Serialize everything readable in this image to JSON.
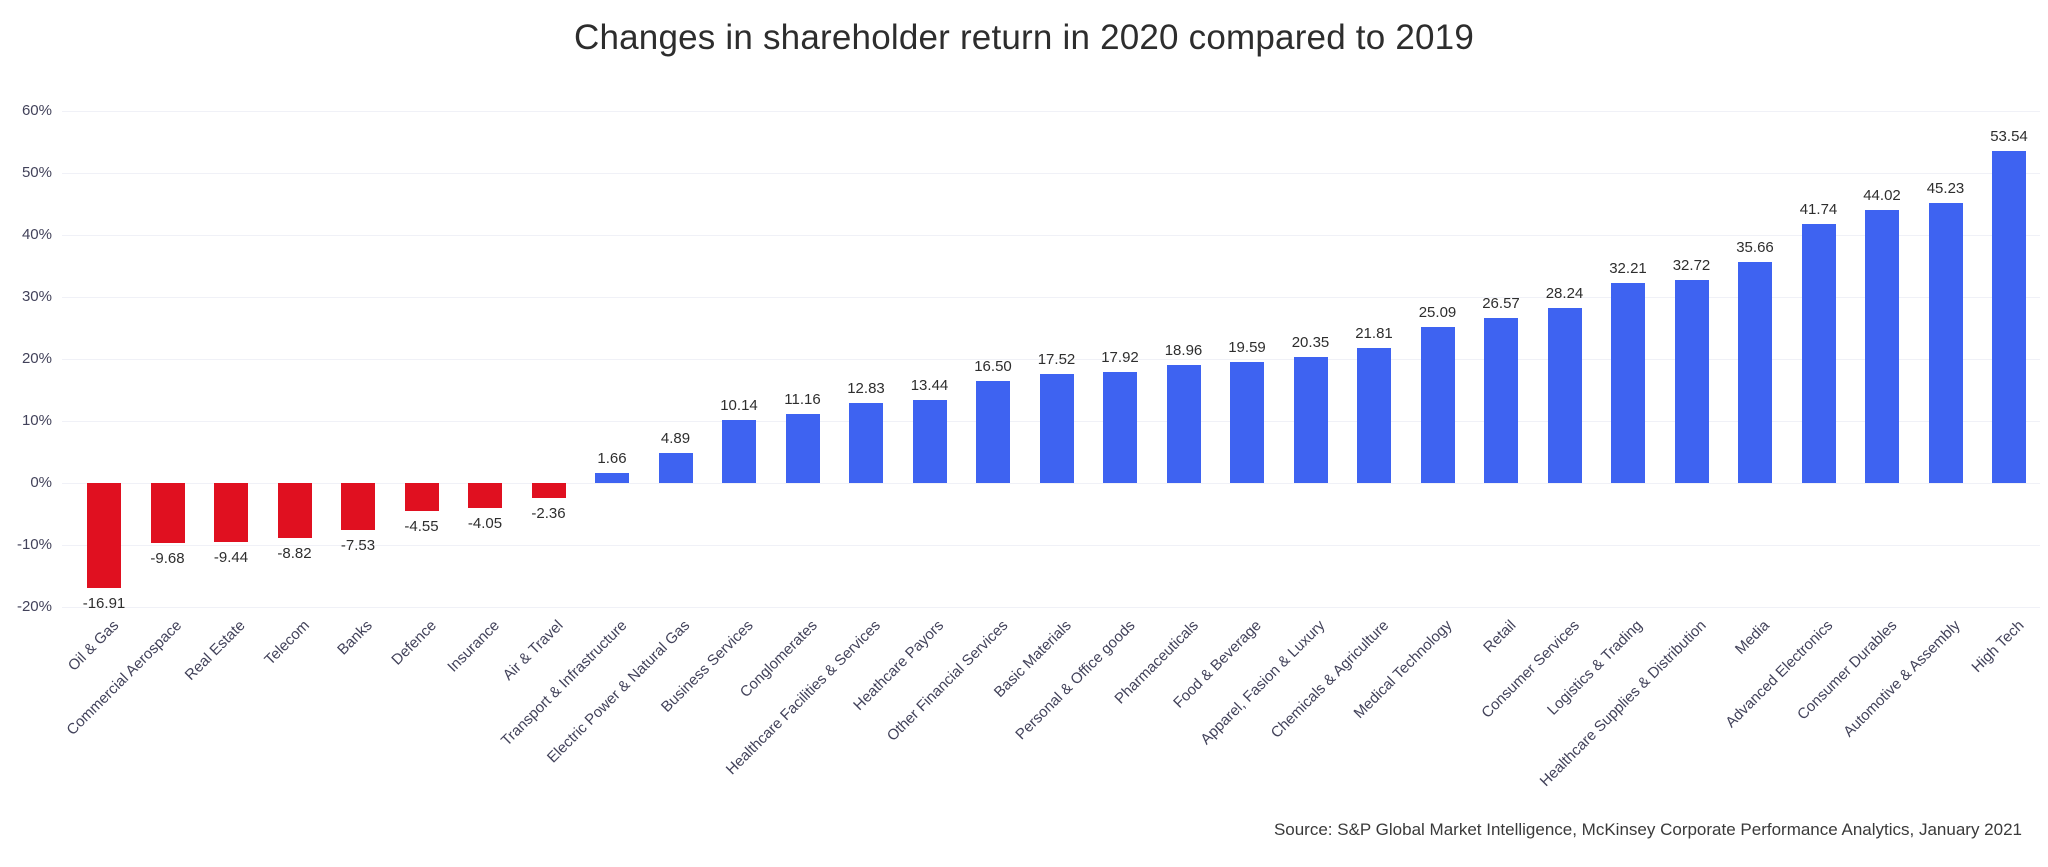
{
  "title": "Changes in shareholder return in 2020 compared to 2019",
  "source": "Source: S&P Global Market Intelligence, McKinsey Corporate Performance Analytics, January 2021",
  "colors": {
    "positive": "#3e63f1",
    "negative": "#e01020",
    "grid": "#f0f1f7",
    "axis_label": "#42425a",
    "value_label": "#2e2e2e",
    "title": "#2d2d2d"
  },
  "chart_data": {
    "type": "bar",
    "title": "Changes in shareholder return in 2020 compared to 2019",
    "xlabel": "",
    "ylabel": "",
    "ylim": [
      -20,
      60
    ],
    "grid": true,
    "legend": "none",
    "y_ticks": [
      "60%",
      "50%",
      "40%",
      "30%",
      "20%",
      "10%",
      "0%",
      "-10%",
      "-20%"
    ],
    "categories": [
      "Oil & Gas",
      "Commercial Aerospace",
      "Real Estate",
      "Telecom",
      "Banks",
      "Defence",
      "Insurance",
      "Air & Travel",
      "Transport & Infrastructure",
      "Electric Power & Natural Gas",
      "Business Services",
      "Conglomerates",
      "Healthcare Facilities & Services",
      "Heathcare Payors",
      "Other Financial Services",
      "Basic Materials",
      "Personal & Office goods",
      "Pharmaceuticals",
      "Food & Beverage",
      "Apparel, Fasion & Luxury",
      "Chemicals & Agriculture",
      "Medical Technology",
      "Retail",
      "Consumer Services",
      "Logistics & Trading",
      "Healthcare Supplies & Distribution",
      "Media",
      "Advanced Electronics",
      "Consumer Durables",
      "Automotive & Assembly",
      "High Tech"
    ],
    "values": [
      -16.91,
      -9.68,
      -9.44,
      -8.82,
      -7.53,
      -4.55,
      -4.05,
      -2.36,
      1.66,
      4.89,
      10.14,
      11.16,
      12.83,
      13.44,
      16.5,
      17.52,
      17.92,
      18.96,
      19.59,
      20.35,
      21.81,
      25.09,
      26.57,
      28.24,
      32.21,
      32.72,
      35.66,
      41.74,
      44.02,
      45.23,
      53.54
    ],
    "value_labels": [
      "-16.91",
      "-9.68",
      "-9.44",
      "-8.82",
      "-7.53",
      "-4.55",
      "-4.05",
      "-2.36",
      "1.66",
      "4.89",
      "10.14",
      "11.16",
      "12.83",
      "13.44",
      "16.50",
      "17.52",
      "17.92",
      "18.96",
      "19.59",
      "20.35",
      "21.81",
      "25.09",
      "26.57",
      "28.24",
      "32.21",
      "32.72",
      "35.66",
      "41.74",
      "44.02",
      "45.23",
      "53.54"
    ]
  }
}
